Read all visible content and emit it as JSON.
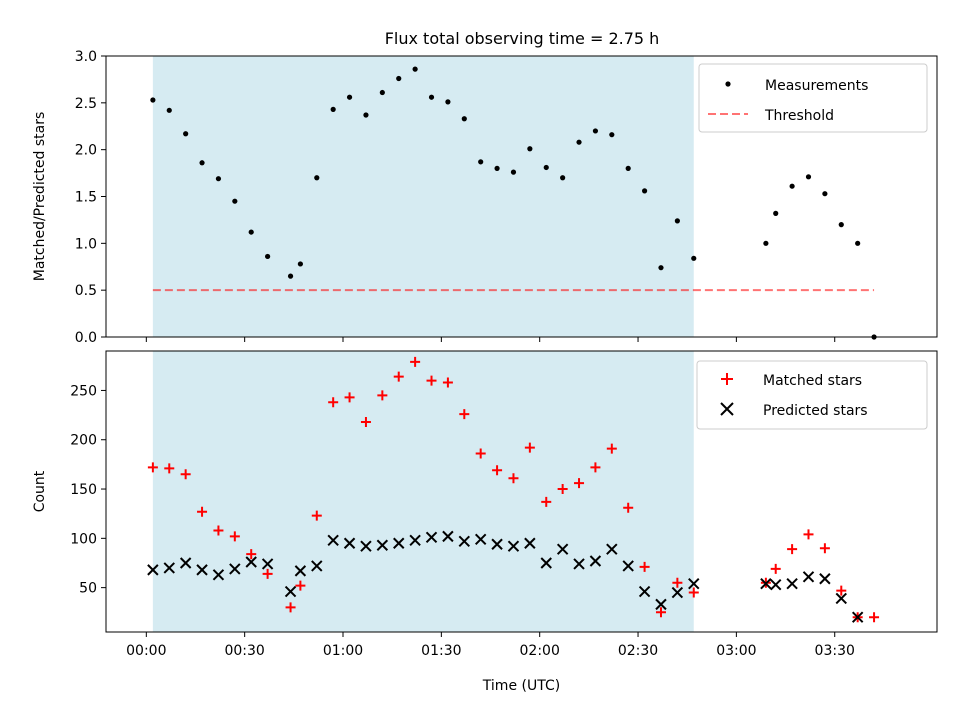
{
  "title": "Flux total observing time = 2.75 h",
  "colors": {
    "shade": "#add8e6",
    "threshold": "#ff0000",
    "measurements": "#000000",
    "matched": "#ff0000",
    "predicted": "#000000"
  },
  "chart_data": [
    {
      "type": "scatter",
      "ylabel": "Matched/Predicted stars",
      "ylim": [
        0,
        3.0
      ],
      "yticks": [
        "0.0",
        "0.5",
        "1.0",
        "1.5",
        "2.0",
        "2.5",
        "3.0"
      ],
      "legend": {
        "position": "top-right",
        "entries": [
          "Measurements",
          "Threshold"
        ]
      },
      "shaded_region": {
        "x_start": "00:02",
        "x_end": "02:47"
      },
      "series": [
        {
          "name": "Measurements",
          "x": [
            "00:02",
            "00:07",
            "00:12",
            "00:17",
            "00:22",
            "00:27",
            "00:32",
            "00:37",
            "00:44",
            "00:47",
            "00:52",
            "00:57",
            "01:02",
            "01:07",
            "01:12",
            "01:17",
            "01:22",
            "01:27",
            "01:32",
            "01:37",
            "01:42",
            "01:47",
            "01:52",
            "01:57",
            "02:02",
            "02:07",
            "02:12",
            "02:17",
            "02:22",
            "02:27",
            "02:32",
            "02:37",
            "02:42",
            "02:47",
            "03:09",
            "03:12",
            "03:17",
            "03:22",
            "03:27",
            "03:32",
            "03:37",
            "03:42"
          ],
          "values": [
            2.53,
            2.42,
            2.17,
            1.86,
            1.69,
            1.45,
            1.12,
            0.86,
            0.65,
            0.78,
            1.7,
            2.43,
            2.56,
            2.37,
            2.61,
            2.76,
            2.86,
            2.56,
            2.51,
            2.33,
            1.87,
            1.8,
            1.76,
            2.01,
            1.81,
            1.7,
            2.08,
            2.2,
            2.16,
            1.8,
            1.56,
            0.74,
            1.24,
            0.84,
            1.0,
            1.32,
            1.61,
            1.71,
            1.53,
            1.2,
            1.0,
            0.0
          ]
        },
        {
          "name": "Threshold",
          "x": [
            "00:02",
            "03:42"
          ],
          "values": [
            0.5,
            0.5
          ]
        }
      ]
    },
    {
      "type": "scatter",
      "xlabel": "Time (UTC)",
      "ylabel": "Count",
      "ylim": [
        5,
        290
      ],
      "yticks": [
        "50",
        "100",
        "150",
        "200",
        "250"
      ],
      "xticks": [
        "00:00",
        "00:30",
        "01:00",
        "01:30",
        "02:00",
        "02:30",
        "03:00",
        "03:30"
      ],
      "legend": {
        "position": "top-right",
        "entries": [
          "Matched stars",
          "Predicted stars"
        ]
      },
      "shaded_region": {
        "x_start": "00:02",
        "x_end": "02:47"
      },
      "series": [
        {
          "name": "Matched stars",
          "x": [
            "00:02",
            "00:07",
            "00:12",
            "00:17",
            "00:22",
            "00:27",
            "00:32",
            "00:37",
            "00:44",
            "00:47",
            "00:52",
            "00:57",
            "01:02",
            "01:07",
            "01:12",
            "01:17",
            "01:22",
            "01:27",
            "01:32",
            "01:37",
            "01:42",
            "01:47",
            "01:52",
            "01:57",
            "02:02",
            "02:07",
            "02:12",
            "02:17",
            "02:22",
            "02:27",
            "02:32",
            "02:37",
            "02:42",
            "02:47",
            "03:09",
            "03:12",
            "03:17",
            "03:22",
            "03:27",
            "03:32",
            "03:37",
            "03:42"
          ],
          "values": [
            172,
            171,
            165,
            127,
            108,
            102,
            84,
            64,
            30,
            52,
            123,
            238,
            243,
            218,
            245,
            264,
            279,
            260,
            258,
            226,
            186,
            169,
            161,
            192,
            137,
            150,
            156,
            172,
            191,
            131,
            71,
            25,
            55,
            45,
            55,
            69,
            89,
            104,
            90,
            47,
            20,
            20
          ]
        },
        {
          "name": "Predicted stars",
          "x": [
            "00:02",
            "00:07",
            "00:12",
            "00:17",
            "00:22",
            "00:27",
            "00:32",
            "00:37",
            "00:44",
            "00:47",
            "00:52",
            "00:57",
            "01:02",
            "01:07",
            "01:12",
            "01:17",
            "01:22",
            "01:27",
            "01:32",
            "01:37",
            "01:42",
            "01:47",
            "01:52",
            "01:57",
            "02:02",
            "02:07",
            "02:12",
            "02:17",
            "02:22",
            "02:27",
            "02:32",
            "02:37",
            "02:42",
            "02:47",
            "03:09",
            "03:12",
            "03:17",
            "03:22",
            "03:27",
            "03:32",
            "03:37"
          ],
          "values": [
            68,
            70,
            75,
            68,
            63,
            69,
            76,
            74,
            46,
            67,
            72,
            98,
            95,
            92,
            93,
            95,
            98,
            101,
            102,
            97,
            99,
            94,
            92,
            95,
            75,
            89,
            74,
            77,
            89,
            72,
            46,
            33,
            45,
            54,
            54,
            53,
            54,
            61,
            59,
            39,
            20
          ]
        }
      ]
    }
  ]
}
